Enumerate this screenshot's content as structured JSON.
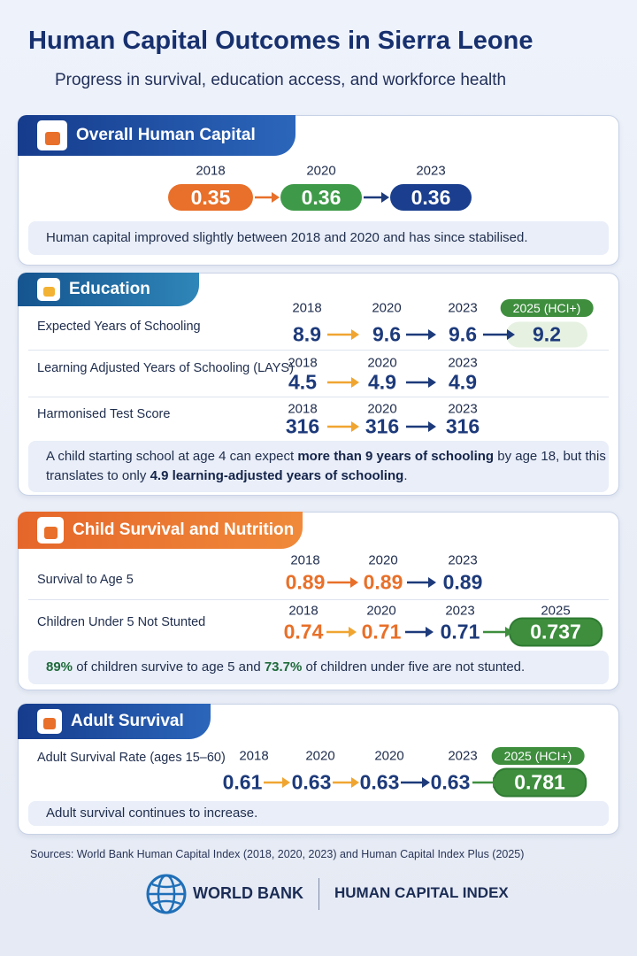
{
  "header": {
    "title": "Human Capital Outcomes in Sierra Leone",
    "subtitle": "Progress in survival, education access, and workforce health"
  },
  "sections": [
    {
      "title": "Overall Human Capital",
      "rows": [
        {
          "years": [
            "2018",
            "2020",
            "2023"
          ],
          "values": [
            "0.35",
            "0.36",
            "0.36"
          ]
        }
      ],
      "note": [
        {
          "text": "Human capital improved slightly between 2018 and 2020 and has since stabilised."
        }
      ]
    },
    {
      "title": "Education",
      "rows": [
        {
          "label": "Expected Years of Schooling",
          "years": [
            "2018",
            "2020",
            "2023",
            "2025 (HCI+)"
          ],
          "values": [
            "8.9",
            "9.6",
            "9.6",
            "9.2"
          ]
        },
        {
          "label": "Learning Adjusted Years of Schooling (LAYS)",
          "years": [
            "2018",
            "2020",
            "2023"
          ],
          "values": [
            "4.5",
            "4.9",
            "4.9"
          ]
        },
        {
          "label": "Harmonised Test Score",
          "years": [
            "2018",
            "2020",
            "2023"
          ],
          "values": [
            "316",
            "316",
            "316"
          ]
        }
      ],
      "note": [
        {
          "text": "A child starting school at age 4 can expect "
        },
        {
          "text": "more than 9 years of schooling",
          "bold": true
        },
        {
          "text": " by age 18, but this translates to only "
        },
        {
          "text": "4.9 learning-adjusted years of schooling",
          "bold": true
        },
        {
          "text": "."
        }
      ]
    },
    {
      "title": "Child Survival and Nutrition",
      "rows": [
        {
          "label": "Survival to Age 5",
          "years": [
            "2018",
            "2020",
            "2023"
          ],
          "values": [
            "0.89",
            "0.89",
            "0.89"
          ]
        },
        {
          "label": "Children Under 5 Not Stunted",
          "years": [
            "2018",
            "2020",
            "2023",
            "2025"
          ],
          "values": [
            "0.74",
            "0.71",
            "0.71",
            "0.737"
          ]
        }
      ],
      "note": [
        {
          "text": "89%",
          "bold": true
        },
        {
          "text": " of children survive to age 5 and "
        },
        {
          "text": "73.7%",
          "bold": true
        },
        {
          "text": " of children under five are not stunted."
        }
      ]
    },
    {
      "title": "Adult Survival",
      "rows": [
        {
          "label": "Adult Survival Rate (ages 15–60)",
          "years": [
            "2018",
            "2020",
            "2020",
            "2023",
            "2025 (HCI+)"
          ],
          "values": [
            "0.61",
            "0.63",
            "0.63",
            "0.63",
            "0.781"
          ]
        }
      ],
      "note": [
        {
          "text": "Adult survival continues to increase."
        }
      ]
    }
  ],
  "footer": {
    "sources": "Sources: World Bank Human Capital Index (2018, 2020, 2023) and Human Capital Index Plus (2025)",
    "org": "WORLD BANK",
    "product": "HUMAN CAPITAL INDEX"
  }
}
